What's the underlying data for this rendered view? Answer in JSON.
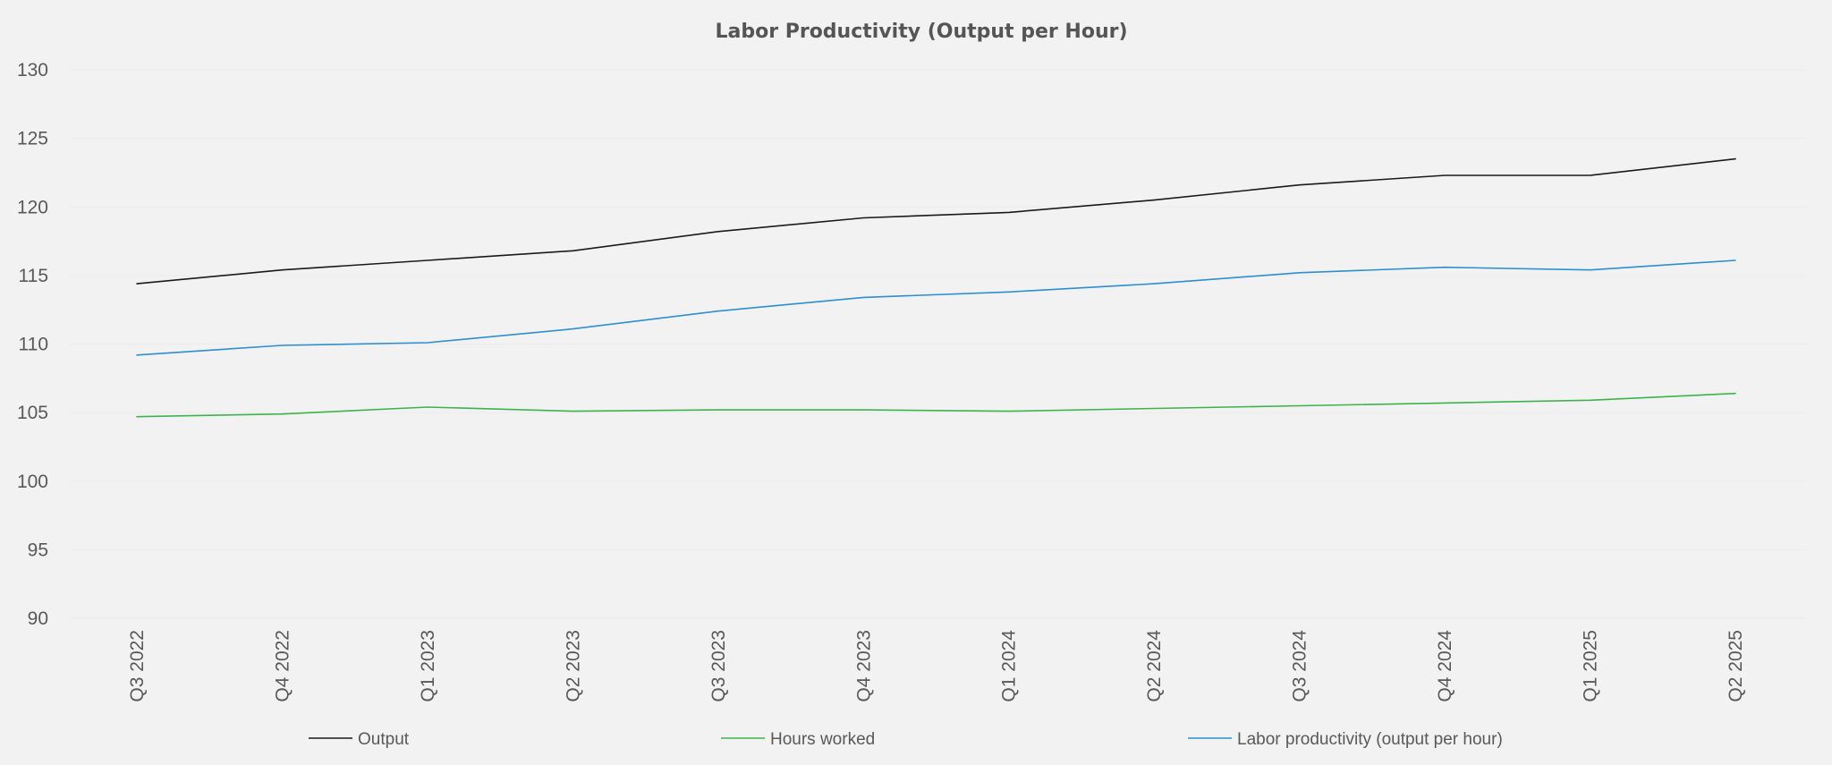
{
  "chart_data": {
    "type": "line",
    "title": "Labor Productivity (Output per Hour)",
    "xlabel": "",
    "ylabel": "",
    "ylim": [
      90,
      130
    ],
    "yticks": [
      90,
      95,
      100,
      105,
      110,
      115,
      120,
      125,
      130
    ],
    "grid": true,
    "legend_position": "bottom",
    "categories": [
      "Q3 2022",
      "Q4 2022",
      "Q1 2023",
      "Q2 2023",
      "Q3 2023",
      "Q4 2023",
      "Q1 2024",
      "Q2 2024",
      "Q3 2024",
      "Q4 2024",
      "Q1 2025",
      "Q2 2025"
    ],
    "series": [
      {
        "name": "Output",
        "color": "#1a1a1a",
        "values": [
          114.4,
          115.4,
          116.1,
          116.8,
          118.2,
          119.2,
          119.6,
          120.5,
          121.6,
          122.3,
          122.3,
          123.5
        ]
      },
      {
        "name": "Hours worked",
        "color": "#3cb44b",
        "values": [
          104.7,
          104.9,
          105.4,
          105.1,
          105.2,
          105.2,
          105.1,
          105.3,
          105.5,
          105.7,
          105.9,
          106.4
        ]
      },
      {
        "name": "Labor productivity (output per hour)",
        "color": "#2b8fd0",
        "values": [
          109.2,
          109.9,
          110.1,
          111.1,
          112.4,
          113.4,
          113.8,
          114.4,
          115.2,
          115.6,
          115.4,
          116.1
        ]
      }
    ]
  }
}
